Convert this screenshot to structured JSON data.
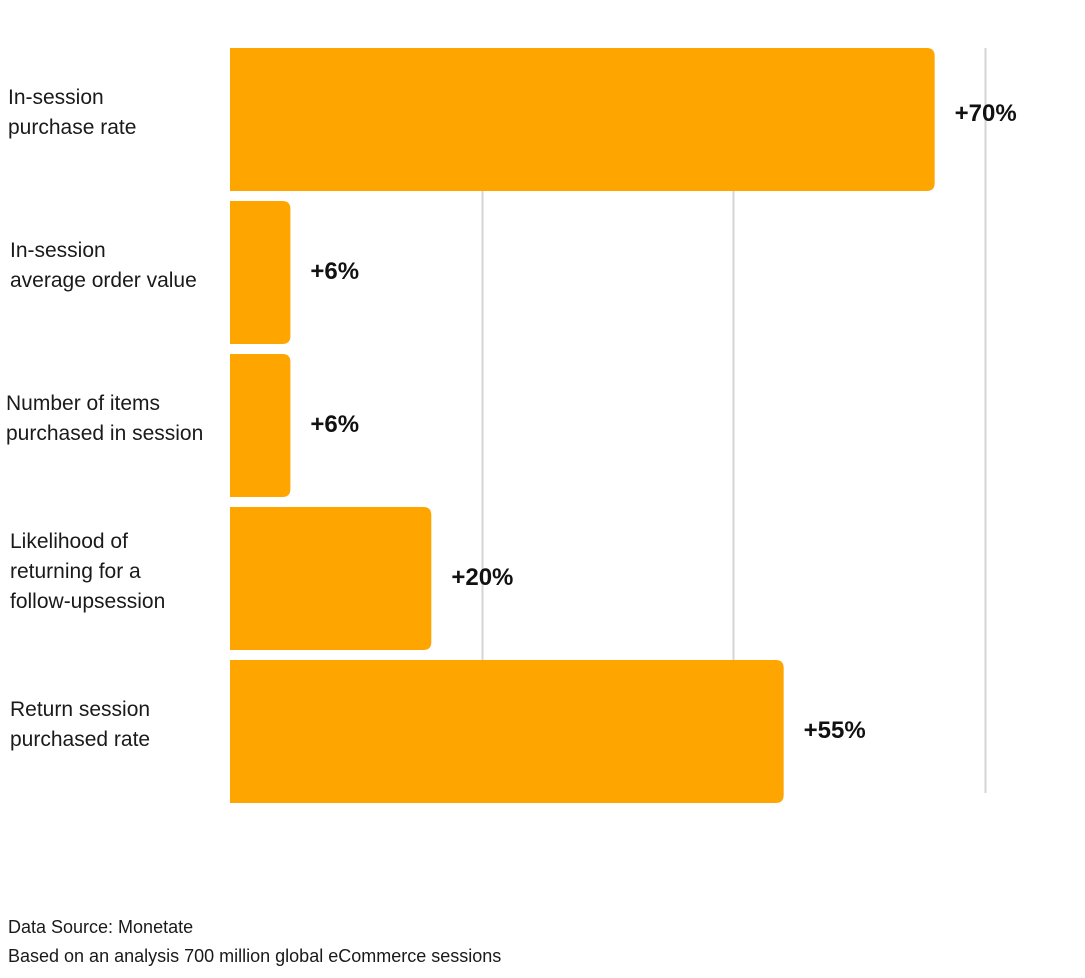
{
  "chart_data": {
    "type": "bar",
    "orientation": "horizontal",
    "categories": [
      [
        "In-session",
        "purchase rate"
      ],
      [
        "In-session",
        "average order value"
      ],
      [
        "Number of items",
        "purchased in session"
      ],
      [
        "Likelihood of",
        "returning for a",
        "follow-upsession"
      ],
      [
        "Return session",
        "purchased rate"
      ]
    ],
    "values": [
      70,
      6,
      6,
      20,
      55
    ],
    "value_labels": [
      "+70%",
      "+6%",
      "+6%",
      "+20%",
      "+55%"
    ],
    "xlim": [
      0,
      75
    ],
    "gridlines_x": [
      25,
      50,
      75
    ],
    "grid": true,
    "bar_color": "#FFA500",
    "gridline_color": "#d4d4d4",
    "title": "",
    "xlabel": "",
    "ylabel": ""
  },
  "footer": {
    "source": "Data Source: Monetate",
    "note": "Based on an analysis 700 million global eCommerce sessions"
  }
}
